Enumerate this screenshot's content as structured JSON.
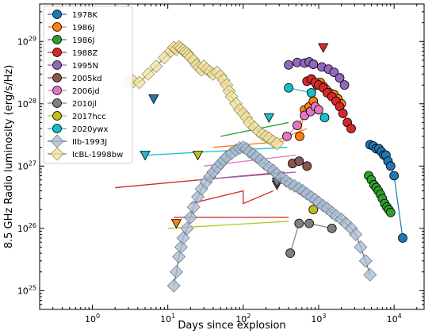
{
  "chart_data": {
    "type": "scatter",
    "title": "",
    "xlabel": "Days since explosion",
    "ylabel": "8.5 GHz Radio luminosity (erg/s/Hz)",
    "xscale": "log",
    "yscale": "log",
    "xlim": [
      0.2,
      25000
    ],
    "ylim": [
      5e+24,
      4e+29
    ],
    "x_ticks": [
      1,
      10,
      100,
      1000,
      10000
    ],
    "x_tick_labels": [
      {
        "base": "10",
        "exp": "0"
      },
      {
        "base": "10",
        "exp": "1"
      },
      {
        "base": "10",
        "exp": "2"
      },
      {
        "base": "10",
        "exp": "3"
      },
      {
        "base": "10",
        "exp": "4"
      }
    ],
    "y_ticks": [
      1e+25,
      1e+26,
      1e+27,
      1e+28,
      1e+29
    ],
    "y_tick_labels": [
      {
        "base": "10",
        "exp": "25"
      },
      {
        "base": "10",
        "exp": "26"
      },
      {
        "base": "10",
        "exp": "27"
      },
      {
        "base": "10",
        "exp": "28"
      },
      {
        "base": "10",
        "exp": "29"
      }
    ],
    "legend_position": "top-left",
    "series": [
      {
        "name": "1978K",
        "color": "#1f77b4",
        "marker": "circle",
        "line": true,
        "x": [
          4800,
          5300,
          5800,
          6300,
          6800,
          7300,
          7800,
          8300,
          9000,
          10000,
          13000
        ],
        "y": [
          2.2e+27,
          2.1e+27,
          1.9e+27,
          1.9e+27,
          1.7e+27,
          1.5e+27,
          1.5e+27,
          1.2e+27,
          1e+27,
          7e+26,
          7e+25
        ],
        "upper_limits": [
          {
            "x": 6.5,
            "y": 1.2e+28
          }
        ]
      },
      {
        "name": "1986J",
        "color": "#ff7f0e",
        "marker": "circle",
        "line": true,
        "x": [
          560,
          650,
          750,
          850,
          950,
          1050,
          1150,
          1250,
          1400,
          1600,
          1800,
          2000
        ],
        "y": [
          3e+27,
          8e+27,
          9e+27,
          1.1e+28,
          2e+28,
          2.2e+28,
          1.9e+28,
          1.7e+28,
          1.5e+28,
          1.4e+28,
          1.2e+28,
          1e+28
        ],
        "upper_limits": [
          {
            "x": 13,
            "y": 1.2e+26
          }
        ],
        "lines": [
          [
            [
              40,
              2e+27
            ],
            [
              350,
              2.5e+27
            ]
          ],
          [
            [
              220,
              2.3e+27
            ],
            [
              700,
              4e+27
            ]
          ]
        ]
      },
      {
        "name": "1986J",
        "color": "#2ca02c",
        "marker": "circle",
        "line": true,
        "x": [
          4600,
          5000,
          5400,
          5800,
          6200,
          6600,
          7000,
          7500,
          8000,
          8500,
          9000
        ],
        "y": [
          7e+26,
          6e+26,
          5e+26,
          4.5e+26,
          4e+26,
          3.5e+26,
          3e+26,
          2.5e+26,
          2.2e+26,
          2e+26,
          1.8e+26
        ],
        "lines": [
          [
            [
              50,
              3e+27
            ],
            [
              400,
              5e+27
            ]
          ]
        ]
      },
      {
        "name": "1988Z",
        "color": "#d62728",
        "marker": "circle",
        "line": true,
        "x": [
          700,
          800,
          900,
          1000,
          1150,
          1300,
          1500,
          1700,
          1900,
          2100,
          2400,
          2700
        ],
        "y": [
          2.3e+28,
          2.5e+28,
          2.2e+28,
          2e+28,
          1.8e+28,
          1.5e+28,
          1.3e+28,
          1.1e+28,
          9e+27,
          7e+27,
          5e+27,
          4e+27
        ],
        "upper_limits": [
          {
            "x": 1150,
            "y": 8e+28
          }
        ],
        "lines": [
          [
            [
              2,
              4.5e+26
            ],
            [
              350,
              8e+26
            ]
          ],
          [
            [
              20,
              2.5e+26
            ],
            [
              100,
              4e+26
            ],
            [
              100,
              2.5e+26
            ],
            [
              250,
              4e+26
            ]
          ],
          [
            [
              12,
              1.5e+26
            ],
            [
              400,
              1.5e+26
            ]
          ]
        ]
      },
      {
        "name": "1995N",
        "color": "#9467bd",
        "marker": "circle",
        "line": true,
        "x": [
          400,
          520,
          650,
          750,
          850,
          1100,
          1350,
          1600,
          1900,
          2200
        ],
        "y": [
          4.2e+28,
          4.6e+28,
          4.5e+28,
          4.7e+28,
          4.3e+28,
          3.9e+28,
          3.6e+28,
          3.2e+28,
          2.6e+28,
          2e+28
        ],
        "lines": [
          [
            [
              25,
              6e+26
            ],
            [
              500,
              8e+26
            ]
          ]
        ]
      },
      {
        "name": "2005kd",
        "color": "#8c564b",
        "marker": "circle",
        "line": true,
        "x": [
          450,
          550,
          700
        ],
        "y": [
          1.1e+27,
          1.2e+27,
          1e+27
        ],
        "upper_limits": [
          {
            "x": 280,
            "y": 5e+26
          }
        ]
      },
      {
        "name": "2006jd",
        "color": "#e377c2",
        "marker": "circle",
        "line": true,
        "x": [
          380,
          520,
          650,
          780,
          900,
          1000
        ],
        "y": [
          3e+27,
          4.5e+27,
          6.5e+27,
          7.5e+27,
          9e+27,
          8e+27
        ],
        "lines": [
          [
            [
              30,
              1e+27
            ],
            [
              500,
              1.5e+27
            ]
          ]
        ]
      },
      {
        "name": "2010jl",
        "color": "#7f7f7f",
        "marker": "circle",
        "line": true,
        "x": [
          420,
          550,
          750,
          1500
        ],
        "y": [
          4e+25,
          1.2e+26,
          1.2e+26,
          1e+26
        ],
        "upper_limits": [
          {
            "x": 280,
            "y": 5.5e+26
          }
        ]
      },
      {
        "name": "2017hcc",
        "color": "#bcbd22",
        "marker": "circle",
        "line": true,
        "x": [
          850
        ],
        "y": [
          2e+26
        ],
        "upper_limits": [
          {
            "x": 25,
            "y": 1.5e+27
          }
        ],
        "lines": [
          [
            [
              10,
              1e+26
            ],
            [
              400,
              1.3e+26
            ]
          ]
        ]
      },
      {
        "name": "2020ywx",
        "color": "#17becf",
        "marker": "circle",
        "line": true,
        "x": [
          400,
          800,
          1200
        ],
        "y": [
          1.8e+28,
          1.5e+28,
          6e+27
        ],
        "upper_limits": [
          {
            "x": 220,
            "y": 6e+27
          },
          {
            "x": 5,
            "y": 1.5e+27
          }
        ],
        "lines": [
          [
            [
              5.5,
              1.5e+27
            ],
            [
              380,
              2e+27
            ]
          ]
        ]
      },
      {
        "name": "IIb-1993J",
        "color": "#a6b9d1",
        "marker": "diamond",
        "line": true,
        "x": [
          12,
          13,
          14,
          15,
          16,
          18,
          20,
          22,
          25,
          28,
          32,
          36,
          40,
          45,
          50,
          55,
          60,
          70,
          80,
          90,
          100,
          110,
          120,
          135,
          150,
          170,
          190,
          220,
          250,
          280,
          320,
          370,
          420,
          480,
          550,
          620,
          700,
          800,
          900,
          1000,
          1150,
          1300,
          1500,
          1700,
          2000,
          2300,
          2700,
          3100,
          3600,
          4200,
          4800
        ],
        "y": [
          1.2e+25,
          2e+25,
          3.5e+25,
          5e+25,
          7e+25,
          1e+26,
          1.5e+26,
          2.2e+26,
          3.2e+26,
          4.3e+26,
          5.5e+26,
          6.8e+26,
          8e+26,
          9.5e+26,
          1.1e+27,
          1.25e+27,
          1.4e+27,
          1.6e+27,
          1.8e+27,
          1.95e+27,
          2e+27,
          1.9e+27,
          1.7e+27,
          1.55e+27,
          1.4e+27,
          1.25e+27,
          1.1e+27,
          9.5e+26,
          8.5e+26,
          7.5e+26,
          6.5e+26,
          5.8e+26,
          5.2e+26,
          4.8e+26,
          4.4e+26,
          4e+26,
          3.6e+26,
          3.2e+26,
          2.9e+26,
          2.6e+26,
          2.3e+26,
          2.1e+26,
          1.8e+26,
          1.6e+26,
          1.4e+26,
          1.2e+26,
          1e+26,
          8e+25,
          5e+25,
          3e+25,
          1.8e+25
        ]
      },
      {
        "name": "IcBL-1998bw",
        "color": "#f0e09a",
        "marker": "diamond",
        "line": true,
        "x": [
          3,
          3.5,
          4.2,
          5.5,
          7,
          9,
          11,
          12,
          13,
          14,
          15,
          16,
          17,
          18,
          19,
          20,
          22,
          24,
          26,
          28,
          30,
          33,
          36,
          40,
          45,
          50,
          55,
          60,
          65,
          70,
          80,
          90,
          100,
          110,
          120,
          140,
          160,
          180,
          200,
          220,
          250,
          280
        ],
        "y": [
          2.2e+28,
          2.3e+28,
          2.2e+28,
          3e+28,
          4e+28,
          5.5e+28,
          7e+28,
          8e+28,
          7.5e+28,
          8.2e+28,
          7.8e+28,
          7.2e+28,
          6.8e+28,
          6.5e+28,
          6e+28,
          5.5e+28,
          5e+28,
          4.2e+28,
          3.8e+28,
          3.5e+28,
          4e+28,
          3.6e+28,
          3.3e+28,
          3e+28,
          3.2e+28,
          2.8e+28,
          2.4e+28,
          2e+28,
          1.6e+28,
          1.3e+28,
          1e+28,
          8e+27,
          7e+27,
          6e+27,
          5e+27,
          4.2e+27,
          3.6e+27,
          3.2e+27,
          3e+27,
          2.8e+27,
          2.5e+27,
          2.3e+27
        ]
      }
    ]
  }
}
